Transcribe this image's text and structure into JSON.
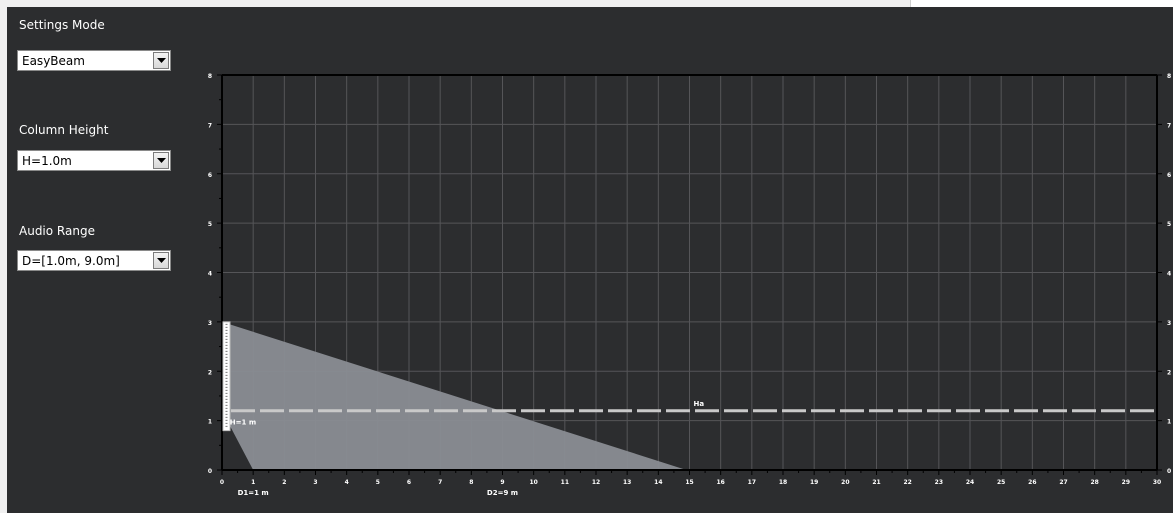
{
  "panel": {
    "settings_mode": {
      "label": "Settings Mode",
      "selected": "EasyBeam"
    },
    "column_height": {
      "label": "Column Height",
      "selected": "H=1.0m"
    },
    "audio_range": {
      "label": "Audio Range",
      "selected": "D=[1.0m, 9.0m]"
    }
  },
  "chart_data": {
    "type": "area",
    "xlim": [
      0,
      30
    ],
    "ylim": [
      0,
      8
    ],
    "x_ticks": [
      0,
      1,
      2,
      3,
      4,
      5,
      6,
      7,
      8,
      9,
      10,
      11,
      12,
      13,
      14,
      15,
      16,
      17,
      18,
      19,
      20,
      21,
      22,
      23,
      24,
      25,
      26,
      27,
      28,
      29,
      30
    ],
    "y_ticks": [
      0,
      1,
      2,
      3,
      4,
      5,
      6,
      7,
      8
    ],
    "grid": true,
    "coverage_polygon": [
      [
        0,
        3
      ],
      [
        14.9,
        0
      ],
      [
        1,
        0
      ],
      [
        0,
        1.2
      ]
    ],
    "column": {
      "x": 0,
      "y_bottom": 1.0,
      "y_top": 3.0
    },
    "listener_height": {
      "y": 1.2,
      "label": "Ha"
    },
    "annotations": {
      "column_height": {
        "text": "H=1 m",
        "x": 0.25,
        "y": 1.0
      },
      "d1": {
        "text": "D1=1 m",
        "x": 1
      },
      "d2": {
        "text": "D2=9 m",
        "x": 9
      }
    }
  },
  "colors": {
    "background": "#2c2d2f",
    "grid": "#555558",
    "axis": "#000000",
    "coverage": "#8a8d93",
    "dashed_line": "#c9c9c9",
    "text": "#ffffff"
  }
}
